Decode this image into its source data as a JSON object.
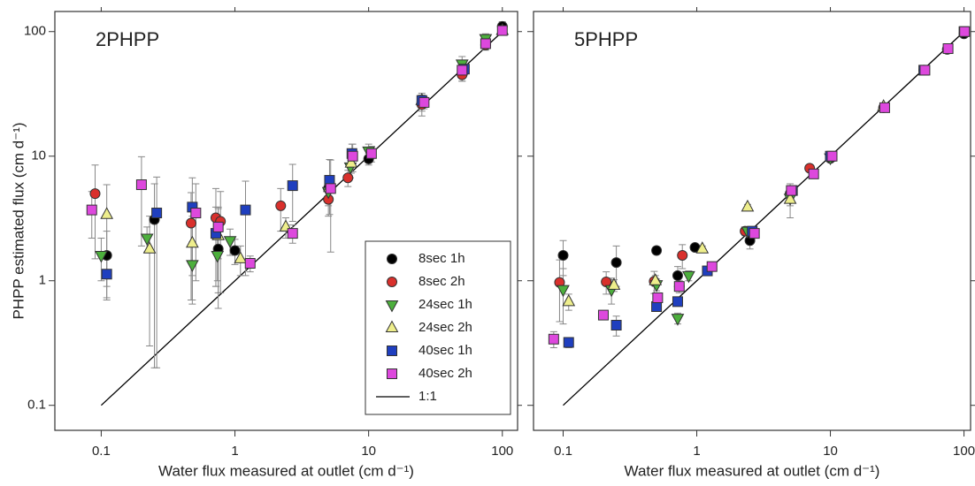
{
  "chart_data": [
    {
      "type": "scatter",
      "title": "2PHPP",
      "x_label": "Water flux measured at outlet (cm d⁻¹)",
      "y_label": "PHPP estimated flux (cm d⁻¹)",
      "log_x": true,
      "log_y": true,
      "xlim": [
        0.045,
        130
      ],
      "ylim": [
        0.063,
        145
      ],
      "xticks": [
        0.1,
        1,
        10,
        100
      ],
      "yticks": [
        0.1,
        1,
        10,
        100
      ],
      "legend_loc": "lower right",
      "reference_line": {
        "name": "1:1",
        "x": [
          0.1,
          100
        ],
        "y": [
          0.1,
          100
        ],
        "color": "#000000"
      },
      "series": [
        {
          "name": "8sec 1h",
          "color": "#000000",
          "marker": "circle",
          "x": [
            0.11,
            0.25,
            0.75,
            1.0,
            5,
            10,
            25,
            50,
            100
          ],
          "values": [
            1.6,
            3.1,
            1.8,
            1.75,
            5.5,
            9.5,
            27,
            46,
            110
          ],
          "errors": [
            0.9,
            2.9,
            1.2,
            0.4,
            1.5,
            1,
            4,
            6,
            10
          ]
        },
        {
          "name": "8sec 2h",
          "color": "#d9302c",
          "marker": "circle",
          "x": [
            0.09,
            0.47,
            0.72,
            0.78,
            2.2,
            5,
            7,
            25,
            50,
            75
          ],
          "values": [
            5,
            2.9,
            3.2,
            3,
            4,
            4.5,
            6.7,
            26,
            45,
            78
          ],
          "errors": [
            3.5,
            2.2,
            2.3,
            2.2,
            1.5,
            1.2,
            1,
            5,
            5,
            7
          ]
        },
        {
          "name": "24sec 1h",
          "color": "#4caf3c",
          "marker": "triangle-down",
          "x": [
            0.1,
            0.22,
            0.48,
            0.74,
            0.92,
            5,
            7.3,
            10,
            50,
            75
          ],
          "values": [
            1.6,
            2.2,
            1.35,
            1.6,
            2.1,
            5.2,
            8.2,
            11,
            55,
            88
          ],
          "errors": [
            0.6,
            0.5,
            0.7,
            0.6,
            0.5,
            1,
            1.5,
            1.5,
            8,
            8
          ]
        },
        {
          "name": "24sec 2h",
          "color": "#eeee8c",
          "marker": "triangle-up",
          "x": [
            0.11,
            0.23,
            0.48,
            0.75,
            1.1,
            2.4,
            5.1,
            7.4,
            25,
            100
          ],
          "values": [
            3.4,
            1.8,
            2,
            2.3,
            1.5,
            2.7,
            5.6,
            8.8,
            28,
            102
          ],
          "errors": [
            2.5,
            1.5,
            1.3,
            1.5,
            0.4,
            0.5,
            1,
            1.5,
            4,
            8
          ]
        },
        {
          "name": "40sec 1h",
          "color": "#1f3fbf",
          "marker": "square",
          "x": [
            0.11,
            0.26,
            0.48,
            0.72,
            1.2,
            2.7,
            5.1,
            7.5,
            25,
            52
          ],
          "values": [
            1.13,
            3.5,
            3.9,
            2.4,
            3.7,
            5.8,
            6.4,
            10.5,
            28,
            50
          ],
          "errors": [
            0.4,
            3.3,
            2.8,
            1.5,
            2.6,
            2.8,
            3,
            2,
            3,
            5
          ]
        },
        {
          "name": "40sec 2h",
          "color": "#dd48dd",
          "marker": "square",
          "x": [
            0.085,
            0.2,
            0.51,
            0.75,
            1.3,
            2.7,
            5.2,
            7.6,
            10.5,
            26,
            50,
            75,
            100
          ],
          "values": [
            3.7,
            5.9,
            3.5,
            2.7,
            1.38,
            2.4,
            5.5,
            10,
            10.5,
            27,
            49,
            80,
            102
          ],
          "errors": [
            1.5,
            4,
            2.5,
            1.2,
            0.2,
            0.4,
            3.8,
            2.5,
            1.5,
            3,
            4,
            6,
            8
          ]
        }
      ]
    },
    {
      "type": "scatter",
      "title": "5PHPP",
      "x_label": "Water flux measured at outlet (cm d⁻¹)",
      "log_x": true,
      "log_y": true,
      "xlim": [
        0.06,
        112
      ],
      "ylim": [
        0.063,
        145
      ],
      "xticks": [
        0.1,
        1,
        10,
        100
      ],
      "reference_line": {
        "name": "1:1",
        "x": [
          0.1,
          100
        ],
        "y": [
          0.1,
          100
        ],
        "color": "#000000"
      },
      "series": [
        {
          "name": "8sec 1h",
          "color": "#000000",
          "marker": "circle",
          "x": [
            0.1,
            0.25,
            0.5,
            0.72,
            0.97,
            2.5,
            5,
            10,
            100
          ],
          "values": [
            1.6,
            1.4,
            1.75,
            1.1,
            1.85,
            2.1,
            5,
            9.6,
            96
          ],
          "errors": [
            0.5,
            0.5,
            0.1,
            0.2,
            0.1,
            0.3,
            0.5,
            0.5,
            3
          ]
        },
        {
          "name": "8sec 2h",
          "color": "#d9302c",
          "marker": "circle",
          "x": [
            0.094,
            0.21,
            0.48,
            0.74,
            0.78,
            2.3,
            7,
            10,
            25,
            50,
            75
          ],
          "values": [
            0.97,
            0.98,
            0.99,
            0.9,
            1.6,
            2.5,
            8,
            9.8,
            24.5,
            49,
            72
          ],
          "errors": [
            0.5,
            0.2,
            0.2,
            0.1,
            0.35,
            0.2,
            0.5,
            0.5,
            1,
            2,
            3
          ]
        },
        {
          "name": "24sec 1h",
          "color": "#4caf3c",
          "marker": "triangle-down",
          "x": [
            0.1,
            0.23,
            0.5,
            0.72,
            0.87,
            2.4,
            5,
            10
          ],
          "values": [
            0.85,
            0.85,
            0.93,
            0.5,
            1.1,
            2.5,
            4.6,
            9.7
          ],
          "errors": [
            0.4,
            0.2,
            0.1,
            0.05,
            0.1,
            0.2,
            1.4,
            0.5
          ]
        },
        {
          "name": "24sec 2h",
          "color": "#eeee8c",
          "marker": "triangle-up",
          "x": [
            0.11,
            0.24,
            0.49,
            1.1,
            2.4,
            5,
            25
          ],
          "values": [
            0.68,
            0.92,
            1,
            1.8,
            3.9,
            4.5,
            25
          ],
          "errors": [
            0.1,
            0.1,
            0.1,
            0.1,
            0.2,
            0.5,
            1
          ]
        },
        {
          "name": "40sec 1h",
          "color": "#1f3fbf",
          "marker": "square",
          "x": [
            0.11,
            0.25,
            0.5,
            0.72,
            1.2,
            2.6,
            5.2,
            10,
            50,
            100
          ],
          "values": [
            0.32,
            0.44,
            0.62,
            0.68,
            1.2,
            2.5,
            5.3,
            10,
            49,
            100
          ],
          "errors": [
            0.03,
            0.08,
            0.05,
            0.05,
            0.1,
            0.2,
            0.3,
            0.5,
            2,
            3
          ]
        },
        {
          "name": "40sec 2h",
          "color": "#dd48dd",
          "marker": "square",
          "x": [
            0.085,
            0.2,
            0.51,
            0.74,
            1.3,
            2.7,
            5.1,
            7.5,
            10.3,
            25.5,
            51,
            76,
            101
          ],
          "values": [
            0.34,
            0.53,
            0.73,
            0.9,
            1.3,
            2.4,
            5.3,
            7.2,
            10,
            24.5,
            49,
            73,
            100
          ],
          "errors": [
            0.05,
            0.03,
            0.05,
            0.05,
            0.1,
            0.2,
            0.3,
            0.4,
            0.5,
            1,
            2,
            3,
            3
          ]
        }
      ]
    }
  ]
}
